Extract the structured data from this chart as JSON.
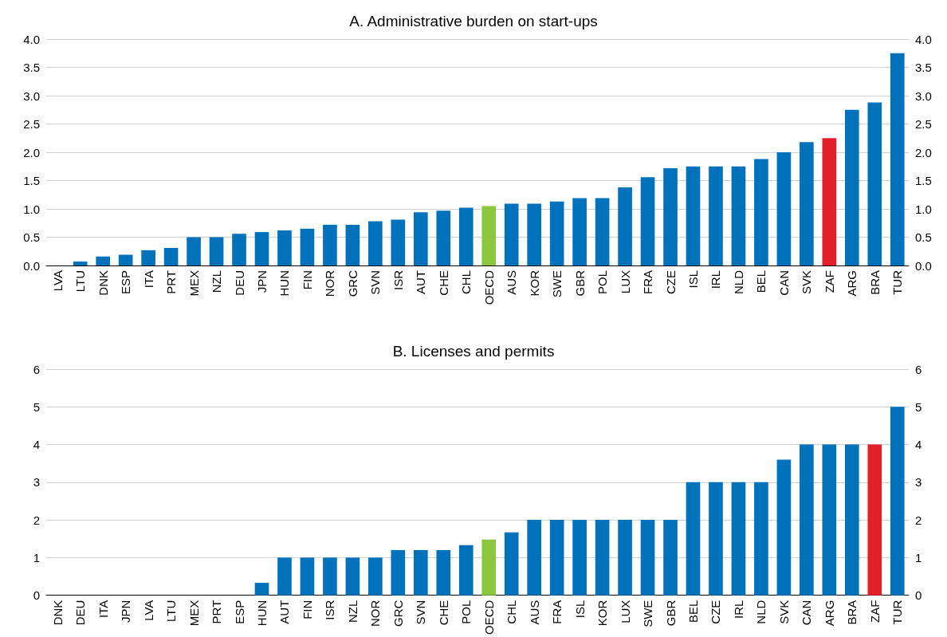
{
  "chart_data": [
    {
      "type": "bar",
      "title": "A. Administrative burden on start-ups",
      "categories": [
        "LVA",
        "LTU",
        "DNK",
        "ESP",
        "ITA",
        "PRT",
        "MEX",
        "NZL",
        "DEU",
        "JPN",
        "HUN",
        "FIN",
        "NOR",
        "GRC",
        "SVN",
        "ISR",
        "AUT",
        "CHE",
        "CHL",
        "OECD",
        "AUS",
        "KOR",
        "SWE",
        "GBR",
        "POL",
        "LUX",
        "FRA",
        "CZE",
        "ISL",
        "IRL",
        "NLD",
        "BEL",
        "CAN",
        "SVK",
        "ZAF",
        "ARG",
        "BRA",
        "TUR"
      ],
      "values": [
        0,
        0.07,
        0.16,
        0.19,
        0.27,
        0.31,
        0.5,
        0.5,
        0.56,
        0.59,
        0.62,
        0.65,
        0.72,
        0.72,
        0.78,
        0.81,
        0.94,
        0.97,
        1.02,
        1.05,
        1.09,
        1.09,
        1.13,
        1.19,
        1.19,
        1.38,
        1.56,
        1.72,
        1.75,
        1.75,
        1.75,
        1.88,
        2.0,
        2.18,
        2.25,
        2.75,
        2.88,
        3.75
      ],
      "colors": [
        "#0072bc",
        "#0072bc",
        "#0072bc",
        "#0072bc",
        "#0072bc",
        "#0072bc",
        "#0072bc",
        "#0072bc",
        "#0072bc",
        "#0072bc",
        "#0072bc",
        "#0072bc",
        "#0072bc",
        "#0072bc",
        "#0072bc",
        "#0072bc",
        "#0072bc",
        "#0072bc",
        "#0072bc",
        "#8cc63f",
        "#0072bc",
        "#0072bc",
        "#0072bc",
        "#0072bc",
        "#0072bc",
        "#0072bc",
        "#0072bc",
        "#0072bc",
        "#0072bc",
        "#0072bc",
        "#0072bc",
        "#0072bc",
        "#0072bc",
        "#0072bc",
        "#e3202a",
        "#0072bc",
        "#0072bc",
        "#0072bc"
      ],
      "ylim": [
        0,
        4
      ],
      "yticks": [
        {
          "value": 0,
          "label": "0.0"
        },
        0.5,
        {
          "value": 1,
          "label": "1.0"
        },
        1.5,
        {
          "value": 2,
          "label": "2.0"
        },
        2.5,
        {
          "value": 3,
          "label": "3.0"
        },
        3.5,
        {
          "value": 4,
          "label": "4.0"
        }
      ],
      "y2lim": [
        0,
        4
      ],
      "y2ticks": [
        {
          "value": 0,
          "label": "0.0"
        },
        0.5,
        {
          "value": 1,
          "label": "1.0"
        },
        1.5,
        {
          "value": 2,
          "label": "2.0"
        },
        2.5,
        {
          "value": 3,
          "label": "3.0"
        },
        3.5,
        {
          "value": 4,
          "label": "4.0"
        }
      ],
      "grid": "y"
    },
    {
      "type": "bar",
      "title": "B. Licenses and permits",
      "categories": [
        "DNK",
        "DEU",
        "ITA",
        "JPN",
        "LVA",
        "LTU",
        "MEX",
        "PRT",
        "ESP",
        "HUN",
        "AUT",
        "FIN",
        "ISR",
        "NZL",
        "NOR",
        "GRC",
        "SVN",
        "CHE",
        "POL",
        "OECD",
        "CHL",
        "AUS",
        "FRA",
        "ISL",
        "KOR",
        "LUX",
        "SWE",
        "GBR",
        "BEL",
        "CZE",
        "IRL",
        "NLD",
        "SVK",
        "CAN",
        "ARG",
        "BRA",
        "ZAF",
        "TUR"
      ],
      "values": [
        0,
        0,
        0,
        0,
        0,
        0,
        0,
        0,
        0,
        0.33,
        1,
        1,
        1,
        1,
        1,
        1.2,
        1.2,
        1.2,
        1.33,
        1.48,
        1.67,
        2,
        2,
        2,
        2,
        2,
        2,
        2,
        3,
        3,
        3,
        3,
        3.6,
        4,
        4,
        4,
        4,
        5
      ],
      "colors": [
        "#0072bc",
        "#0072bc",
        "#0072bc",
        "#0072bc",
        "#0072bc",
        "#0072bc",
        "#0072bc",
        "#0072bc",
        "#0072bc",
        "#0072bc",
        "#0072bc",
        "#0072bc",
        "#0072bc",
        "#0072bc",
        "#0072bc",
        "#0072bc",
        "#0072bc",
        "#0072bc",
        "#0072bc",
        "#8cc63f",
        "#0072bc",
        "#0072bc",
        "#0072bc",
        "#0072bc",
        "#0072bc",
        "#0072bc",
        "#0072bc",
        "#0072bc",
        "#0072bc",
        "#0072bc",
        "#0072bc",
        "#0072bc",
        "#0072bc",
        "#0072bc",
        "#0072bc",
        "#0072bc",
        "#e3202a",
        "#0072bc"
      ],
      "ylim": [
        0,
        6
      ],
      "yticks": [
        0,
        1,
        2,
        3,
        4,
        5,
        6
      ],
      "y2lim": [
        0,
        6
      ],
      "y2ticks": [
        0,
        1,
        2,
        3,
        4,
        5,
        6
      ],
      "grid": "y"
    }
  ]
}
